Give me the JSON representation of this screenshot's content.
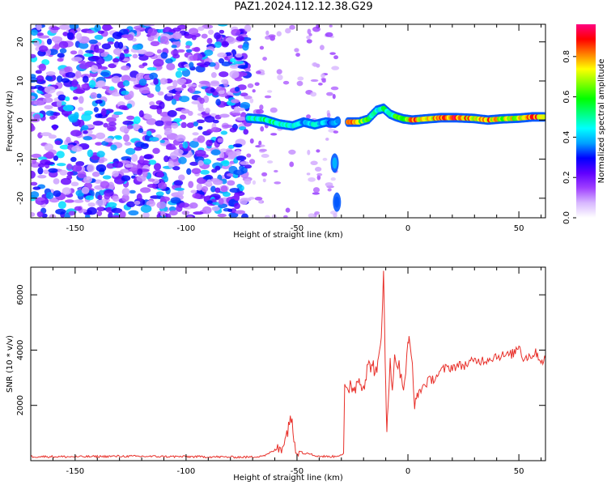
{
  "figure": {
    "title": "PAZ1.2024.112.12.38.G29"
  },
  "chart_data": [
    {
      "type": "heatmap",
      "title": "",
      "xlabel": "Height of straight line (km)",
      "ylabel": "Frequency (Hz)",
      "xlim": [
        -170,
        62
      ],
      "ylim": [
        -25,
        24.5
      ],
      "xticks": [
        -150,
        -100,
        -50,
        0,
        50
      ],
      "yticks": [
        -20,
        -10,
        0,
        10,
        20
      ],
      "colorbar": {
        "label": "Normalized spectral amplitude",
        "ticks": [
          0.0,
          0.2,
          0.4,
          0.6,
          0.8
        ],
        "colors": [
          "#ffffff",
          "#d8b8ff",
          "#a040ff",
          "#6000ff",
          "#0000ff",
          "#00a0ff",
          "#00ffff",
          "#00ff80",
          "#00ff00",
          "#80ff00",
          "#ffff00",
          "#ff8000",
          "#ff0000",
          "#ff0080"
        ]
      },
      "noise_region": {
        "x": [
          -170,
          -72
        ],
        "y": [
          -25,
          24.5
        ],
        "amplitude": [
          0.08,
          0.45
        ]
      },
      "gaps": [
        {
          "x": [
            -72,
            -48
          ]
        },
        {
          "x": [
            -45,
            -32
          ]
        }
      ],
      "ridge": [
        {
          "x": -72,
          "f": 0.5,
          "amp": 0.45
        },
        {
          "x": -65,
          "f": 0.2,
          "amp": 0.55
        },
        {
          "x": -58,
          "f": -1.0,
          "amp": 0.5
        },
        {
          "x": -52,
          "f": -1.5,
          "amp": 0.45
        },
        {
          "x": -47,
          "f": -0.5,
          "amp": 0.4
        },
        {
          "x": -42,
          "f": -1.2,
          "amp": 0.45
        },
        {
          "x": -37,
          "f": -0.5,
          "amp": 0.4
        },
        {
          "x": -33,
          "f": -0.8,
          "amp": 0.35
        },
        {
          "x": -31,
          "f": 0.0,
          "amp": 0.4
        },
        {
          "x": -27,
          "f": -0.5,
          "amp": 0.85
        },
        {
          "x": -22,
          "f": -0.5,
          "amp": 0.7
        },
        {
          "x": -18,
          "f": 0.2,
          "amp": 0.6
        },
        {
          "x": -14,
          "f": 2.5,
          "amp": 0.45
        },
        {
          "x": -11,
          "f": 3.0,
          "amp": 0.55
        },
        {
          "x": -8,
          "f": 1.5,
          "amp": 0.5
        },
        {
          "x": -5,
          "f": 0.8,
          "amp": 0.6
        },
        {
          "x": -2,
          "f": 0.3,
          "amp": 0.65
        },
        {
          "x": 2,
          "f": 0.0,
          "amp": 0.85
        },
        {
          "x": 8,
          "f": 0.3,
          "amp": 0.75
        },
        {
          "x": 15,
          "f": 0.6,
          "amp": 0.8
        },
        {
          "x": 22,
          "f": 0.6,
          "amp": 0.9
        },
        {
          "x": 30,
          "f": 0.4,
          "amp": 0.75
        },
        {
          "x": 36,
          "f": 0.0,
          "amp": 0.85
        },
        {
          "x": 42,
          "f": 0.3,
          "amp": 0.7
        },
        {
          "x": 50,
          "f": 0.5,
          "amp": 0.75
        },
        {
          "x": 56,
          "f": 0.8,
          "amp": 0.85
        },
        {
          "x": 62,
          "f": 0.8,
          "amp": 0.8
        }
      ],
      "stray_feature": [
        {
          "x": -33,
          "f": -11,
          "amp": 0.4
        },
        {
          "x": -32,
          "f": -21,
          "amp": 0.35
        }
      ]
    },
    {
      "type": "line",
      "title": "",
      "xlabel": "Height of straight line (km)",
      "ylabel": "SNR (10 * v/v)",
      "xlim": [
        -170,
        62
      ],
      "ylim": [
        0,
        7000
      ],
      "xticks": [
        -150,
        -100,
        -50,
        0,
        50
      ],
      "yticks": [
        2000,
        4000,
        6000
      ],
      "color": "#e8302a",
      "x": [
        -170,
        -150,
        -130,
        -110,
        -90,
        -80,
        -70,
        -64,
        -60,
        -57,
        -55,
        -53,
        -51,
        -49,
        -47,
        -45,
        -43,
        -40,
        -37,
        -33,
        -29,
        -28.5,
        -27,
        -26,
        -24,
        -22,
        -20,
        -18,
        -16,
        -14,
        -12,
        -11,
        -10.5,
        -10,
        -9.5,
        -9,
        -8,
        -7,
        -6,
        -5,
        -4,
        -3,
        -2,
        -1,
        0,
        0.5,
        2,
        3,
        5,
        8,
        12,
        16,
        20,
        25,
        30,
        35,
        40,
        45,
        48,
        50,
        52,
        55,
        58,
        60,
        62
      ],
      "y": [
        150,
        140,
        160,
        150,
        140,
        130,
        130,
        200,
        380,
        550,
        800,
        1700,
        600,
        400,
        250,
        300,
        200,
        160,
        150,
        150,
        250,
        2500,
        2400,
        2800,
        2600,
        3000,
        2700,
        3400,
        3500,
        3100,
        4400,
        7000,
        5000,
        2500,
        900,
        2000,
        3700,
        2700,
        3600,
        3700,
        3400,
        2900,
        2700,
        3200,
        4100,
        4400,
        3500,
        2000,
        2500,
        2800,
        3000,
        3300,
        3400,
        3450,
        3600,
        3650,
        3800,
        3800,
        3900,
        4200,
        3700,
        3800,
        3900,
        3600,
        3700
      ]
    }
  ]
}
